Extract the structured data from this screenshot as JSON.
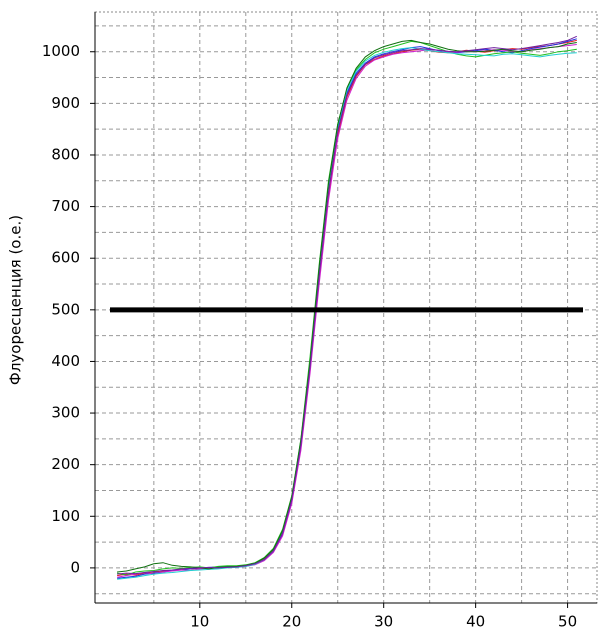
{
  "chart_data": {
    "type": "line",
    "y_label": "Флуоресценция  (о.е.)",
    "x": [
      1,
      2,
      3,
      4,
      5,
      6,
      7,
      8,
      9,
      10,
      11,
      12,
      13,
      14,
      15,
      16,
      17,
      18,
      19,
      20,
      21,
      22,
      23,
      24,
      25,
      26,
      27,
      28,
      29,
      30,
      31,
      32,
      33,
      34,
      35,
      36,
      37,
      38,
      39,
      40,
      41,
      42,
      43,
      44,
      45,
      46,
      47,
      48,
      49,
      50,
      51
    ],
    "series": [
      {
        "color": "#e02020",
        "values": [
          -15,
          -12,
          -14,
          -10,
          -8,
          -6,
          -5,
          -3,
          -2,
          -1,
          0,
          1,
          2,
          3,
          5,
          8,
          17,
          34,
          68,
          130,
          235,
          385,
          560,
          720,
          838,
          912,
          952,
          975,
          985,
          992,
          996,
          1000,
          1003,
          1005,
          1002,
          999,
          998,
          1000,
          1003,
          1001,
          999,
          1002,
          1004,
          1006,
          1005,
          1008,
          1010,
          1012,
          1015,
          1018,
          1022
        ]
      },
      {
        "color": "#2030e0",
        "values": [
          -20,
          -18,
          -16,
          -12,
          -10,
          -8,
          -5,
          -4,
          -2,
          0,
          1,
          2,
          3,
          2,
          4,
          7,
          15,
          31,
          65,
          128,
          240,
          400,
          575,
          735,
          850,
          920,
          958,
          978,
          990,
          996,
          1000,
          1004,
          1008,
          1010,
          1006,
          1002,
          1000,
          998,
          1000,
          1002,
          1005,
          1003,
          1000,
          998,
          1002,
          1006,
          1009,
          1012,
          1015,
          1020,
          1025
        ]
      },
      {
        "color": "#20c020",
        "values": [
          -10,
          -14,
          -8,
          -6,
          -5,
          -2,
          0,
          -1,
          1,
          2,
          0,
          3,
          4,
          4,
          6,
          10,
          20,
          38,
          75,
          140,
          250,
          410,
          590,
          750,
          860,
          928,
          965,
          985,
          998,
          1005,
          1010,
          1015,
          1020,
          1018,
          1012,
          1006,
          1000,
          995,
          992,
          990,
          993,
          996,
          998,
          1000,
          997,
          995,
          993,
          996,
          1000,
          1002,
          1005
        ]
      },
      {
        "color": "#d020d0",
        "values": [
          -18,
          -15,
          -12,
          -9,
          -12,
          -8,
          -6,
          -4,
          -5,
          -2,
          -1,
          0,
          1,
          1,
          3,
          6,
          14,
          30,
          62,
          125,
          228,
          378,
          552,
          712,
          832,
          906,
          948,
          972,
          984,
          990,
          995,
          998,
          1000,
          1002,
          1004,
          1003,
          1000,
          999,
          1001,
          1000,
          1002,
          1004,
          1003,
          1001,
          1000,
          1004,
          1006,
          1008,
          1010,
          1012,
          1014
        ]
      },
      {
        "color": "#20d0d0",
        "values": [
          -22,
          -20,
          -18,
          -15,
          -12,
          -10,
          -9,
          -7,
          -5,
          -4,
          -3,
          -2,
          0,
          1,
          3,
          7,
          16,
          33,
          70,
          135,
          245,
          395,
          580,
          740,
          855,
          925,
          962,
          982,
          993,
          999,
          1003,
          1006,
          1008,
          1005,
          1002,
          1000,
          998,
          996,
          995,
          994,
          993,
          992,
          995,
          996,
          994,
          992,
          990,
          993,
          995,
          997,
          998
        ]
      },
      {
        "color": "#107010",
        "values": [
          -8,
          -6,
          -2,
          2,
          8,
          10,
          5,
          3,
          2,
          0,
          -2,
          1,
          2,
          3,
          5,
          9,
          19,
          36,
          72,
          138,
          248,
          400,
          585,
          745,
          858,
          930,
          968,
          990,
          1002,
          1010,
          1015,
          1020,
          1022,
          1018,
          1015,
          1010,
          1005,
          1002,
          1000,
          1000,
          1001,
          1003,
          1005,
          1002,
          1000,
          1003,
          1005,
          1008,
          1010,
          1015,
          1018
        ]
      },
      {
        "color": "#7020a0",
        "values": [
          -12,
          -10,
          -11,
          -9,
          -7,
          -5,
          -4,
          -2,
          -1,
          0,
          1,
          0,
          1,
          2,
          4,
          8,
          16,
          33,
          67,
          132,
          238,
          390,
          568,
          728,
          845,
          916,
          955,
          976,
          988,
          994,
          998,
          1002,
          1004,
          1006,
          1005,
          1003,
          1001,
          1000,
          1002,
          1004,
          1006,
          1008,
          1006,
          1004,
          1006,
          1009,
          1012,
          1015,
          1018,
          1022,
          1030
        ]
      }
    ],
    "threshold": 500,
    "xlim": [
      -1.4,
      53.2
    ],
    "ylim": [
      -68,
      1077
    ],
    "xticks": [
      10,
      20,
      30,
      40,
      50
    ],
    "yticks": [
      0,
      100,
      200,
      300,
      400,
      500,
      600,
      700,
      800,
      900,
      1000
    ],
    "xgrid": [
      5,
      10,
      15,
      20,
      25,
      30,
      35,
      40,
      45,
      50
    ],
    "ygrid": [
      -50,
      0,
      50,
      100,
      150,
      200,
      250,
      300,
      350,
      400,
      450,
      500,
      550,
      600,
      650,
      700,
      750,
      800,
      850,
      900,
      950,
      1000,
      1050
    ]
  }
}
